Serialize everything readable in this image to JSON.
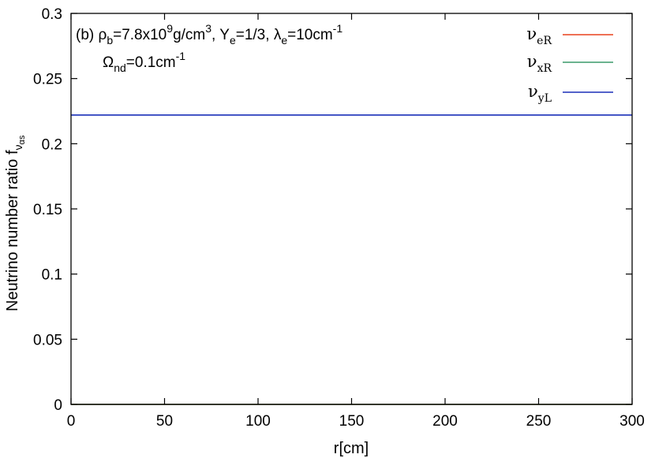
{
  "chart_data": {
    "type": "line",
    "xlabel": "r[cm]",
    "ylabel_main": "Neutrino number ratio f",
    "ylabel_sub": "ν",
    "ylabel_subsub": "αs",
    "xlim": [
      0,
      300
    ],
    "ylim": [
      0,
      0.3
    ],
    "x_ticks": [
      0,
      50,
      100,
      150,
      200,
      250,
      300
    ],
    "y_ticks": [
      0,
      0.05,
      0.1,
      0.15,
      0.2,
      0.25,
      0.3
    ],
    "grid": false,
    "legend_position": "top-right",
    "annotation": {
      "line1": {
        "prefix": "(b) ",
        "rho": "ρ",
        "rho_sub": "b",
        "rho_val": "=7.8x10",
        "rho_exp": "9",
        "rho_unit": "g/cm",
        "rho_unit_exp": "3",
        "ye_sym": ",  Y",
        "ye_sub": "e",
        "ye_val": "=1/3,  ",
        "lam": "λ",
        "lam_sub": "e",
        "lam_val": "=10cm",
        "lam_exp": "-1"
      },
      "line2": {
        "omega": "Ω",
        "omega_sub": "nd",
        "omega_val": "=0.1cm",
        "omega_exp": "-1"
      }
    },
    "series": [
      {
        "name": "ν",
        "name_sub": "eR",
        "color": "#e8401c",
        "x": [
          0,
          300
        ],
        "y": [
          0.0,
          0.0
        ]
      },
      {
        "name": "ν",
        "name_sub": "xR",
        "color": "#3a9a6a",
        "x": [
          0,
          300
        ],
        "y": [
          0.0,
          0.0
        ]
      },
      {
        "name": "ν",
        "name_sub": "yL",
        "color": "#1a2fb8",
        "x": [
          0,
          300
        ],
        "y": [
          0.222,
          0.222
        ]
      }
    ]
  }
}
